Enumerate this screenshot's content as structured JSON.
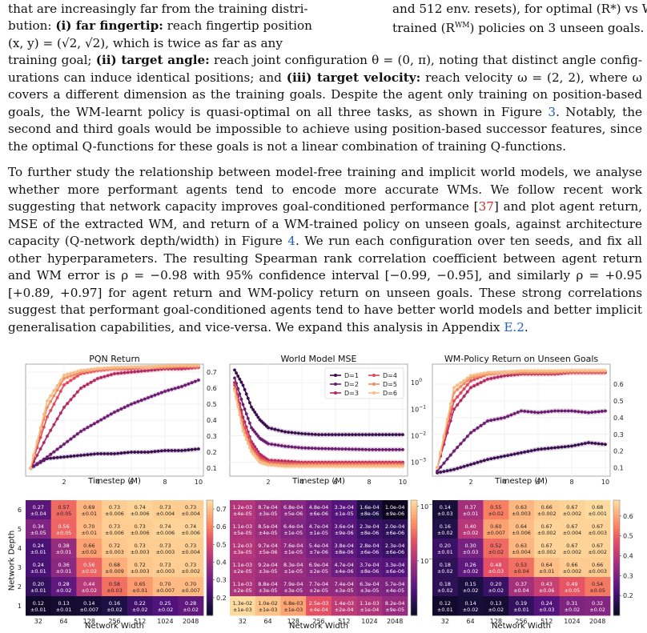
{
  "text": {
    "l1a": "that are increasingly far from the training distri-",
    "l2a": "bution: ",
    "l2b": "(i) far fingertip:",
    "l2c": " reach fingertip position",
    "l3a": "(x, y) = (√2, √2), which is twice as far as any",
    "r1": "and 512 env. resets), for optimal (R*) vs WM-",
    "r2": "trained (R",
    "r2sup": "WM",
    "r2b": ") policies on 3 unseen goals.",
    "p1l4a": "training goal; ",
    "p1l4b": "(ii) target angle:",
    "p1l4c": " reach joint configuration θ = (0, π), noting that distinct angle config-",
    "p1l5": "urations can induce identical positions; and ",
    "p1l5b": "(iii) target velocity:",
    "p1l5c": " reach velocity ω = (2, 2), where ω",
    "p1l6": "covers a different dimension as the training goals. Despite the agent only training on position-based",
    "p1l7a": "goals, the WM-learnt policy is quasi-optimal on all three tasks, as shown in Figure ",
    "p1l7ref": "3",
    "p1l7b": ". Notably, the",
    "p1l8": "second and third goals would be impossible to achieve using position-based successor features, since",
    "p1l9": "the optimal Q-functions for these goals is not a linear combination of training Q-functions.",
    "p2l1": "To further study the relationship between model-free training and implicit world models, we analyse",
    "p2l2": "whether more performant agents tend to encode more accurate WMs.  We follow recent work",
    "p2l3a": "suggesting that network capacity improves goal-conditioned performance [",
    "p2l3ref": "37",
    "p2l3b": "] and plot agent return,",
    "p2l4": "MSE of the extracted WM, and return of a WM-trained policy on unseen goals, against architecture",
    "p2l5a": "capacity (Q-network depth/width) in Figure ",
    "p2l5ref": "4",
    "p2l5b": ". We run each configuration over ten seeds, and fix all",
    "p2l6": "other hyperparameters. The resulting Spearman rank correlation coefficient between agent return",
    "p2l7": "and WM error is ρ = −0.98 with 95% confidence interval [−0.99, −0.95], and similarly ρ = +0.95",
    "p2l8": "[+0.89, +0.97] for agent return and WM-policy return on unseen goals. These strong correlations",
    "p2l9": "suggest that performant goal-conditioned agents tend to have better world models and better implicit",
    "p2l10a": "generalisation capabilities, and vice-versa. We expand this analysis in Appendix ",
    "p2l10ref": "E.2",
    "p2l10b": "."
  },
  "colors": {
    "ref": "#c0392b",
    "link": "#1f5fbf",
    "series": [
      "#3b0f4f",
      "#6a1d6e",
      "#b02a60",
      "#e0475a",
      "#f08a5f",
      "#f6bd86"
    ]
  },
  "chart_data": [
    {
      "type": "line",
      "title": "PQN Return",
      "xlabel": "Timestep (M)",
      "ylabel": "",
      "xlim": [
        0,
        10
      ],
      "ylim": [
        0.05,
        0.75
      ],
      "xticks": [
        "2",
        "4",
        "6",
        "8",
        "10"
      ],
      "yticks": [
        "0.1",
        "0.2",
        "0.3",
        "0.4",
        "0.5",
        "0.6",
        "0.7"
      ],
      "series": [
        {
          "name": "D=1",
          "x": [
            0,
            1,
            2,
            3,
            4,
            5,
            6,
            7,
            8,
            9,
            10
          ],
          "values": [
            0.1,
            0.16,
            0.17,
            0.18,
            0.19,
            0.19,
            0.2,
            0.2,
            0.21,
            0.21,
            0.22
          ]
        },
        {
          "name": "D=2",
          "x": [
            0,
            1,
            2,
            3,
            4,
            5,
            6,
            7,
            8,
            9,
            10
          ],
          "values": [
            0.1,
            0.17,
            0.25,
            0.33,
            0.39,
            0.45,
            0.5,
            0.54,
            0.58,
            0.61,
            0.65
          ]
        },
        {
          "name": "D=3",
          "x": [
            0,
            1,
            2,
            3,
            4,
            5,
            6,
            7,
            8,
            9,
            10
          ],
          "values": [
            0.1,
            0.3,
            0.48,
            0.6,
            0.66,
            0.69,
            0.7,
            0.71,
            0.72,
            0.72,
            0.73
          ]
        },
        {
          "name": "D=4",
          "x": [
            0,
            1,
            2,
            3,
            4,
            5,
            6,
            7,
            8,
            9,
            10
          ],
          "values": [
            0.1,
            0.42,
            0.62,
            0.69,
            0.71,
            0.72,
            0.72,
            0.73,
            0.73,
            0.73,
            0.73
          ]
        },
        {
          "name": "D=5",
          "x": [
            0,
            1,
            2,
            3,
            4,
            5,
            6,
            7,
            8,
            9,
            10
          ],
          "values": [
            0.1,
            0.48,
            0.66,
            0.7,
            0.72,
            0.72,
            0.73,
            0.73,
            0.73,
            0.74,
            0.74
          ]
        },
        {
          "name": "D=6",
          "x": [
            0,
            1,
            2,
            3,
            4,
            5,
            6,
            7,
            8,
            9,
            10
          ],
          "values": [
            0.1,
            0.52,
            0.68,
            0.71,
            0.72,
            0.73,
            0.73,
            0.73,
            0.74,
            0.74,
            0.74
          ]
        }
      ]
    },
    {
      "type": "line",
      "title": "World Model MSE",
      "xlabel": "Timestep (M)",
      "ylabel": "",
      "log_y": true,
      "xlim": [
        0,
        10
      ],
      "ylim": [
        0.0003,
        5
      ],
      "xticks": [
        "2",
        "4",
        "6",
        "8",
        "10"
      ],
      "yticks": [
        "10^0",
        "10^-1",
        "10^-2",
        "10^-3"
      ],
      "legend": "top-right",
      "series": [
        {
          "name": "D=1",
          "x": [
            0,
            0.5,
            1,
            1.5,
            2,
            3,
            4,
            5,
            6,
            7,
            8,
            9,
            10
          ],
          "values": [
            3.0,
            0.8,
            0.12,
            0.04,
            0.02,
            0.014,
            0.012,
            0.011,
            0.011,
            0.011,
            0.011,
            0.011,
            0.011
          ]
        },
        {
          "name": "D=2",
          "x": [
            0,
            0.5,
            1,
            1.5,
            2,
            3,
            4,
            5,
            6,
            7,
            8,
            9,
            10
          ],
          "values": [
            1.5,
            0.15,
            0.02,
            0.008,
            0.005,
            0.004,
            0.0035,
            0.0033,
            0.0032,
            0.0031,
            0.003,
            0.003,
            0.003
          ]
        },
        {
          "name": "D=3",
          "x": [
            0,
            0.5,
            1,
            1.5,
            2,
            3,
            4,
            5,
            6,
            7,
            8,
            9,
            10
          ],
          "values": [
            1.0,
            0.05,
            0.006,
            0.002,
            0.0012,
            0.0011,
            0.001,
            0.001,
            0.001,
            0.001,
            0.001,
            0.001,
            0.001
          ]
        },
        {
          "name": "D=4",
          "x": [
            0,
            0.5,
            1,
            1.5,
            2,
            3,
            4,
            5,
            6,
            7,
            8,
            9,
            10
          ],
          "values": [
            0.8,
            0.03,
            0.004,
            0.0015,
            0.001,
            0.0009,
            0.0009,
            0.0009,
            0.0009,
            0.0009,
            0.0009,
            0.0009,
            0.0009
          ]
        },
        {
          "name": "D=5",
          "x": [
            0,
            0.5,
            1,
            1.5,
            2,
            3,
            4,
            5,
            6,
            7,
            8,
            9,
            10
          ],
          "values": [
            0.6,
            0.02,
            0.003,
            0.0012,
            0.0009,
            0.0008,
            0.0008,
            0.0008,
            0.0008,
            0.0008,
            0.0008,
            0.0008,
            0.0008
          ]
        },
        {
          "name": "D=6",
          "x": [
            0,
            0.5,
            1,
            1.5,
            2,
            3,
            4,
            5,
            6,
            7,
            8,
            9,
            10
          ],
          "values": [
            0.5,
            0.015,
            0.0025,
            0.001,
            0.0008,
            0.0007,
            0.0007,
            0.0007,
            0.0007,
            0.0007,
            0.0007,
            0.0007,
            0.0007
          ]
        }
      ]
    },
    {
      "type": "line",
      "title": "WM-Policy Return on Unseen Goals",
      "xlabel": "Timestep (M)",
      "ylabel": "",
      "xlim": [
        0,
        10
      ],
      "ylim": [
        0.05,
        0.72
      ],
      "xticks": [
        "2",
        "4",
        "6",
        "8",
        "10"
      ],
      "yticks": [
        "0.1",
        "0.2",
        "0.3",
        "0.4",
        "0.5",
        "0.6"
      ],
      "series": [
        {
          "name": "D=1",
          "x": [
            0,
            1,
            2,
            3,
            4,
            5,
            6,
            7,
            8,
            9,
            10
          ],
          "values": [
            0.07,
            0.09,
            0.12,
            0.15,
            0.17,
            0.19,
            0.21,
            0.22,
            0.23,
            0.25,
            0.24
          ]
        },
        {
          "name": "D=2",
          "x": [
            0,
            1,
            2,
            3,
            4,
            5,
            6,
            7,
            8,
            9,
            10
          ],
          "values": [
            0.08,
            0.2,
            0.31,
            0.38,
            0.4,
            0.44,
            0.43,
            0.44,
            0.44,
            0.43,
            0.44
          ]
        },
        {
          "name": "D=3",
          "x": [
            0,
            1,
            2,
            3,
            4,
            5,
            6,
            7,
            8,
            9,
            10
          ],
          "values": [
            0.1,
            0.45,
            0.58,
            0.63,
            0.65,
            0.66,
            0.66,
            0.66,
            0.67,
            0.67,
            0.67
          ]
        },
        {
          "name": "D=4",
          "x": [
            0,
            1,
            2,
            3,
            4,
            5,
            6,
            7,
            8,
            9,
            10
          ],
          "values": [
            0.1,
            0.5,
            0.62,
            0.66,
            0.67,
            0.67,
            0.67,
            0.67,
            0.67,
            0.67,
            0.67
          ]
        },
        {
          "name": "D=5",
          "x": [
            0,
            1,
            2,
            3,
            4,
            5,
            6,
            7,
            8,
            9,
            10
          ],
          "values": [
            0.1,
            0.55,
            0.64,
            0.66,
            0.67,
            0.67,
            0.67,
            0.67,
            0.68,
            0.68,
            0.68
          ]
        },
        {
          "name": "D=6",
          "x": [
            0,
            1,
            2,
            3,
            4,
            5,
            6,
            7,
            8,
            9,
            10
          ],
          "values": [
            0.1,
            0.58,
            0.65,
            0.67,
            0.67,
            0.68,
            0.68,
            0.68,
            0.68,
            0.68,
            0.68
          ]
        }
      ]
    },
    {
      "type": "heatmap",
      "xlabel": "Network Width",
      "ylabel": "Network Depth",
      "x": [
        "32",
        "64",
        "128",
        "256",
        "512",
        "1024",
        "2048"
      ],
      "y": [
        "6",
        "5",
        "4",
        "3",
        "2",
        "1"
      ],
      "colorbar_ticks": [
        "0.7",
        "0.6",
        "0.5",
        "0.4",
        "0.3",
        "0.2"
      ],
      "vmin": 0.1,
      "vmax": 0.75,
      "values": [
        [
          0.27,
          0.57,
          0.69,
          0.73,
          0.74,
          0.73,
          0.73
        ],
        [
          0.34,
          0.56,
          0.7,
          0.73,
          0.73,
          0.74,
          0.74
        ],
        [
          0.24,
          0.38,
          0.66,
          0.72,
          0.73,
          0.73,
          0.73
        ],
        [
          0.24,
          0.36,
          0.56,
          0.68,
          0.72,
          0.73,
          0.73
        ],
        [
          0.2,
          0.28,
          0.44,
          0.58,
          0.65,
          0.7,
          0.7
        ],
        [
          0.12,
          0.13,
          0.14,
          0.16,
          0.22,
          0.25,
          0.28
        ]
      ],
      "errors": [
        [
          "±0.04",
          "±0.05",
          "±0.01",
          "±0.006",
          "±0.006",
          "±0.004",
          "±0.004"
        ],
        [
          "±0.05",
          "±0.05",
          "±0.01",
          "±0.006",
          "±0.006",
          "±0.006",
          "±0.006"
        ],
        [
          "±0.01",
          "±0.01",
          "±0.02",
          "±0.003",
          "±0.003",
          "±0.003",
          "±0.004"
        ],
        [
          "±0.01",
          "±0.01",
          "±0.02",
          "±0.009",
          "±0.003",
          "±0.003",
          "±0.002"
        ],
        [
          "±0.01",
          "±0.02",
          "±0.02",
          "±0.03",
          "±0.01",
          "±0.007",
          "±0.007"
        ],
        [
          "±0.01",
          "±0.01",
          "±0.007",
          "±0.02",
          "±0.02",
          "±0.02",
          "±0.02"
        ]
      ]
    },
    {
      "type": "heatmap",
      "xlabel": "Network Width",
      "ylabel": "",
      "x": [
        "32",
        "64",
        "128",
        "256",
        "512",
        "1024",
        "2048"
      ],
      "y": [
        "6",
        "5",
        "4",
        "3",
        "2",
        "1"
      ],
      "log_color": true,
      "colorbar_ticks": [
        "10^-2",
        "10^-3"
      ],
      "values": [
        [
          "1.2e-03",
          "8.7e-04",
          "6.8e-04",
          "4.8e-04",
          "3.3e-04",
          "1.6e-04",
          "1.0e-04"
        ],
        [
          "1.1e-03",
          "8.5e-04",
          "6.4e-04",
          "4.7e-04",
          "3.6e-04",
          "2.3e-04",
          "2.0e-04"
        ],
        [
          "1.2e-03",
          "9.7e-04",
          "7.6e-04",
          "5.4e-04",
          "3.8e-04",
          "2.8e-04",
          "2.3e-04"
        ],
        [
          "1.1e-03",
          "9.2e-04",
          "8.3e-04",
          "6.9e-04",
          "4.7e-04",
          "3.7e-04",
          "3.3e-04"
        ],
        [
          "1.1e-03",
          "8.8e-04",
          "7.9e-04",
          "7.7e-04",
          "7.4e-04",
          "6.3e-04",
          "5.7e-04"
        ],
        [
          "1.3e-02",
          "1.0e-02",
          "6.8e-03",
          "2.5e-03",
          "1.4e-03",
          "1.1e-03",
          "8.2e-04"
        ]
      ],
      "errors": [
        [
          "±4e-05",
          "±3e-05",
          "±5e-06",
          "±6e-06",
          "±1e-05",
          "±8e-06",
          "±9e-06"
        ],
        [
          "±5e-05",
          "±4e-05",
          "±1e-05",
          "±1e-05",
          "±9e-06",
          "±8e-06",
          "±6e-06"
        ],
        [
          "±3e-05",
          "±5e-06",
          "±1e-05",
          "±7e-06",
          "±8e-06",
          "±6e-06",
          "±6e-06"
        ],
        [
          "±2e-05",
          "±3e-05",
          "±1e-05",
          "±2e-05",
          "±4e-06",
          "±8e-06",
          "±6e-06"
        ],
        [
          "±2e-05",
          "±3e-05",
          "±3e-05",
          "±2e-05",
          "±3e-05",
          "±3e-05",
          "±4e-05"
        ],
        [
          "±1e-03",
          "±1e-03",
          "±1e-03",
          "±4e-04",
          "±2e-04",
          "±1e-04",
          "±9e-05"
        ]
      ]
    },
    {
      "type": "heatmap",
      "xlabel": "Network Width",
      "ylabel": "",
      "x": [
        "32",
        "64",
        "128",
        "256",
        "512",
        "1024",
        "2048"
      ],
      "y": [
        "6",
        "5",
        "4",
        "3",
        "2",
        "1"
      ],
      "colorbar_ticks": [
        "0.6",
        "0.5",
        "0.4",
        "0.3",
        "0.2"
      ],
      "vmin": 0.1,
      "vmax": 0.68,
      "values": [
        [
          0.14,
          0.37,
          0.55,
          0.63,
          0.66,
          0.67,
          0.68
        ],
        [
          0.16,
          0.4,
          0.6,
          0.64,
          0.67,
          0.67,
          0.67
        ],
        [
          0.2,
          0.3,
          0.52,
          0.63,
          0.67,
          0.67,
          0.67
        ],
        [
          0.18,
          0.26,
          0.48,
          0.53,
          0.64,
          0.66,
          0.66
        ],
        [
          0.18,
          0.15,
          0.2,
          0.37,
          0.43,
          0.49,
          0.54
        ],
        [
          0.12,
          0.14,
          0.13,
          0.19,
          0.24,
          0.31,
          0.32
        ]
      ],
      "errors": [
        [
          "±0.03",
          "±0.01",
          "±0.02",
          "±0.003",
          "±0.002",
          "±0.002",
          "±0.001"
        ],
        [
          "±0.02",
          "±0.02",
          "±0.007",
          "±0.006",
          "±0.002",
          "±0.004",
          "±0.003"
        ],
        [
          "±0.01",
          "±0.03",
          "±0.02",
          "±0.004",
          "±0.002",
          "±0.002",
          "±0.002"
        ],
        [
          "±0.02",
          "±0.02",
          "±0.03",
          "±0.04",
          "±0.01",
          "±0.002",
          "±0.003"
        ],
        [
          "±0.02",
          "±0.02",
          "±0.02",
          "±0.04",
          "±0.06",
          "±0.05",
          "±0.05"
        ],
        [
          "±0.01",
          "±0.02",
          "±0.02",
          "±0.01",
          "±0.03",
          "±0.02",
          "±0.02"
        ]
      ]
    }
  ]
}
